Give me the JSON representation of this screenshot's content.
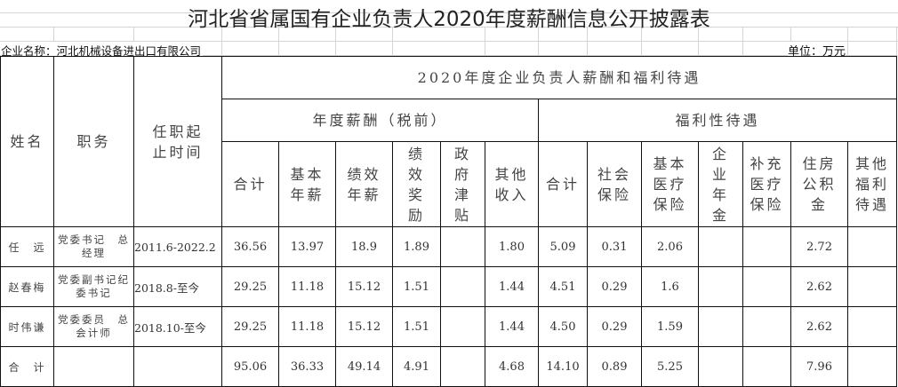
{
  "title": "河北省省属国有企业负责人2020年度薪酬信息公开披露表",
  "company_label": "企业名称：河北机械设备进出口有限公司",
  "unit_label": "单位：万元",
  "headers": {
    "name": "姓名",
    "position": "职务",
    "term": "任职起止时间",
    "group": "2020年度企业负责人薪酬和福利待遇",
    "salary_group": "年度薪酬（税前）",
    "welfare_group": "福利性待遇",
    "salary_cols": [
      "合计",
      "基本年薪",
      "绩效年薪",
      "绩效奖励",
      "政府津贴",
      "其他收入"
    ],
    "welfare_cols": [
      "合计",
      "社会保险",
      "基本医疗保险",
      "企业年金",
      "补充医疗保险",
      "住房公积金",
      "其他福利待遇"
    ]
  },
  "rows": [
    {
      "cells": [
        "任　远",
        "党委书记　总经理",
        "2011.6-2022.2",
        "36.56",
        "13.97",
        "18.9",
        "1.89",
        "",
        "1.80",
        "5.09",
        "0.31",
        "2.06",
        "",
        "",
        "2.72",
        ""
      ]
    },
    {
      "cells": [
        "赵春梅",
        "党委副书记纪委书记",
        "2018.8-至今",
        "29.25",
        "11.18",
        "15.12",
        "1.51",
        "",
        "1.44",
        "4.51",
        "0.29",
        "1.6",
        "",
        "",
        "2.62",
        ""
      ]
    },
    {
      "cells": [
        "时伟谦",
        "党委委员　总会计师",
        "2018.10-至今",
        "29.25",
        "11.18",
        "15.12",
        "1.51",
        "",
        "1.44",
        "4.50",
        "0.29",
        "1.59",
        "",
        "",
        "2.62",
        ""
      ]
    },
    {
      "cells": [
        "合　计",
        "",
        "",
        "95.06",
        "36.33",
        "49.14",
        "4.91",
        "",
        "4.68",
        "14.10",
        "0.89",
        "5.25",
        "",
        "",
        "7.96",
        ""
      ]
    }
  ]
}
